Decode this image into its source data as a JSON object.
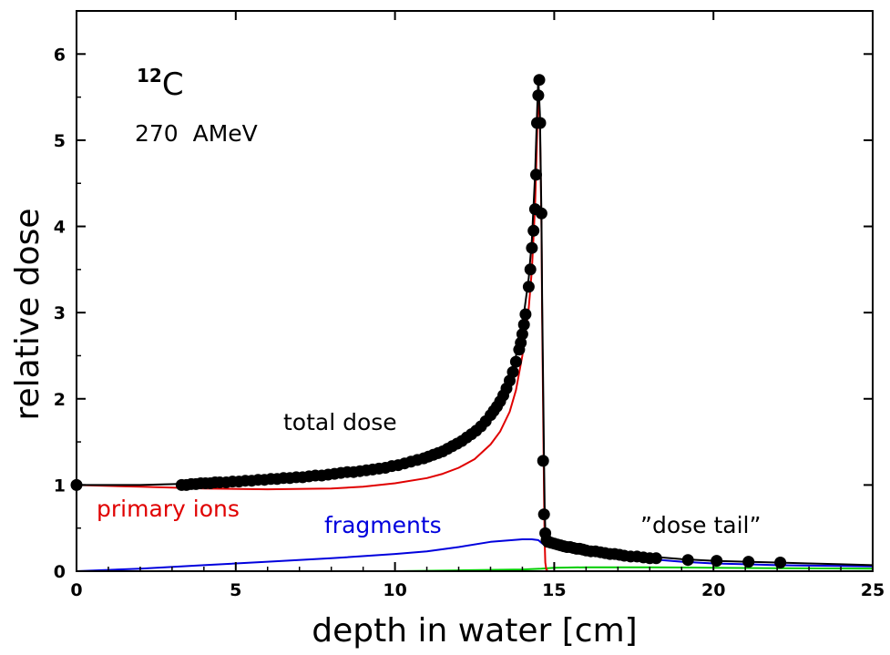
{
  "chart_data": {
    "type": "line",
    "xlabel": "depth in water [cm]",
    "ylabel": "relative dose",
    "xlim": [
      0,
      25
    ],
    "ylim": [
      0,
      6.5
    ],
    "x_ticks": [
      "0",
      "5",
      "10",
      "15",
      "20",
      "25"
    ],
    "y_ticks": [
      "0",
      "1",
      "2",
      "3",
      "4",
      "5",
      "6"
    ],
    "grid": false,
    "annotations": {
      "isotope_mass": "12",
      "isotope_symbol": "C",
      "energy": "270  AMeV",
      "total": "total dose",
      "primary": "primary ions",
      "fragments": "fragments",
      "tail": "”dose tail”"
    },
    "colors": {
      "total": "#000000",
      "primary": "#e00000",
      "fragments": "#0000dd",
      "green": "#00cc00",
      "measured": "#000000"
    },
    "series": [
      {
        "key": "total",
        "x": [
          0,
          2,
          4,
          6,
          8,
          9,
          10,
          11,
          11.5,
          12,
          12.5,
          13,
          13.3,
          13.6,
          13.8,
          14.0,
          14.2,
          14.3,
          14.4,
          14.45,
          14.5,
          14.55,
          14.6,
          14.62,
          14.65,
          14.68,
          14.7,
          14.72,
          14.75,
          14.8,
          15,
          15.5,
          16,
          17,
          18,
          19,
          20,
          21,
          22,
          23,
          24,
          25
        ],
        "y": [
          1.0,
          1.0,
          1.02,
          1.05,
          1.1,
          1.14,
          1.2,
          1.3,
          1.37,
          1.47,
          1.6,
          1.8,
          1.98,
          2.22,
          2.5,
          2.85,
          3.4,
          3.85,
          4.6,
          5.2,
          5.72,
          5.3,
          4.1,
          3.2,
          2.2,
          1.3,
          0.75,
          0.48,
          0.4,
          0.36,
          0.33,
          0.3,
          0.27,
          0.22,
          0.17,
          0.14,
          0.12,
          0.11,
          0.1,
          0.09,
          0.08,
          0.07
        ]
      },
      {
        "key": "primary",
        "x": [
          0,
          2,
          4,
          6,
          8,
          9,
          10,
          11,
          11.5,
          12,
          12.5,
          13,
          13.3,
          13.6,
          13.8,
          14.0,
          14.2,
          14.3,
          14.4,
          14.45,
          14.5,
          14.55,
          14.6,
          14.62,
          14.65,
          14.68,
          14.7,
          14.72,
          14.75,
          14.8
        ],
        "y": [
          1.0,
          0.98,
          0.96,
          0.95,
          0.96,
          0.98,
          1.02,
          1.08,
          1.13,
          1.2,
          1.3,
          1.47,
          1.62,
          1.85,
          2.1,
          2.5,
          3.05,
          3.5,
          4.25,
          4.9,
          5.6,
          5.2,
          4.0,
          3.0,
          1.9,
          0.9,
          0.35,
          0.1,
          0.02,
          0.0
        ]
      },
      {
        "key": "fragments",
        "x": [
          0,
          2,
          4,
          6,
          8,
          10,
          11,
          12,
          13,
          14,
          14.3,
          14.5,
          14.6,
          14.7,
          15,
          16,
          17,
          18,
          19,
          20,
          21,
          22,
          23,
          24,
          25
        ],
        "y": [
          0.0,
          0.03,
          0.07,
          0.11,
          0.15,
          0.2,
          0.23,
          0.28,
          0.34,
          0.37,
          0.37,
          0.36,
          0.33,
          0.3,
          0.27,
          0.22,
          0.18,
          0.14,
          0.11,
          0.09,
          0.08,
          0.07,
          0.065,
          0.06,
          0.055
        ]
      },
      {
        "key": "green",
        "x": [
          0,
          5,
          10,
          12,
          14,
          14.6,
          15,
          16,
          18,
          20,
          22,
          25
        ],
        "y": [
          0.0,
          0.0,
          0.0,
          0.01,
          0.02,
          0.03,
          0.04,
          0.045,
          0.045,
          0.04,
          0.035,
          0.03
        ]
      }
    ],
    "measured_points": {
      "x": [
        0,
        3.3,
        3.45,
        3.6,
        3.75,
        3.9,
        4.05,
        4.2,
        4.35,
        4.5,
        4.7,
        4.9,
        5.1,
        5.3,
        5.5,
        5.7,
        5.9,
        6.1,
        6.3,
        6.5,
        6.7,
        6.9,
        7.1,
        7.3,
        7.5,
        7.7,
        7.9,
        8.1,
        8.3,
        8.5,
        8.7,
        8.9,
        9.1,
        9.3,
        9.5,
        9.7,
        9.9,
        10.1,
        10.3,
        10.5,
        10.7,
        10.9,
        11.05,
        11.2,
        11.35,
        11.5,
        11.65,
        11.8,
        11.95,
        12.1,
        12.25,
        12.4,
        12.55,
        12.7,
        12.85,
        13.0,
        13.1,
        13.2,
        13.3,
        13.4,
        13.5,
        13.6,
        13.7,
        13.8,
        13.9,
        13.95,
        14.0,
        14.05,
        14.1,
        14.2,
        14.25,
        14.3,
        14.35,
        14.4,
        14.43,
        14.46,
        14.5,
        14.53,
        14.56,
        14.6,
        14.65,
        14.68,
        14.72,
        14.76,
        14.8,
        14.9,
        15.0,
        15.1,
        15.2,
        15.3,
        15.4,
        15.5,
        15.6,
        15.7,
        15.8,
        15.9,
        16.0,
        16.15,
        16.3,
        16.45,
        16.6,
        16.75,
        16.9,
        17.05,
        17.2,
        17.4,
        17.6,
        17.8,
        18.0,
        18.2,
        19.2,
        20.1,
        21.1,
        22.1
      ],
      "y": [
        1.0,
        1.0,
        1.0,
        1.01,
        1.01,
        1.02,
        1.02,
        1.02,
        1.03,
        1.03,
        1.03,
        1.04,
        1.04,
        1.05,
        1.05,
        1.06,
        1.06,
        1.07,
        1.07,
        1.08,
        1.08,
        1.09,
        1.09,
        1.1,
        1.11,
        1.11,
        1.12,
        1.13,
        1.14,
        1.15,
        1.15,
        1.16,
        1.17,
        1.18,
        1.19,
        1.2,
        1.22,
        1.23,
        1.25,
        1.27,
        1.29,
        1.31,
        1.33,
        1.35,
        1.37,
        1.39,
        1.42,
        1.45,
        1.48,
        1.51,
        1.55,
        1.59,
        1.63,
        1.68,
        1.74,
        1.81,
        1.86,
        1.91,
        1.97,
        2.04,
        2.12,
        2.21,
        2.31,
        2.43,
        2.57,
        2.65,
        2.75,
        2.86,
        2.98,
        3.3,
        3.5,
        3.75,
        3.95,
        4.2,
        4.6,
        5.2,
        5.52,
        5.7,
        5.2,
        4.15,
        1.28,
        0.66,
        0.44,
        0.36,
        0.34,
        0.33,
        0.32,
        0.31,
        0.3,
        0.29,
        0.28,
        0.28,
        0.27,
        0.26,
        0.26,
        0.25,
        0.24,
        0.23,
        0.23,
        0.22,
        0.21,
        0.2,
        0.2,
        0.19,
        0.18,
        0.17,
        0.17,
        0.16,
        0.15,
        0.15,
        0.13,
        0.12,
        0.11,
        0.1
      ]
    }
  }
}
